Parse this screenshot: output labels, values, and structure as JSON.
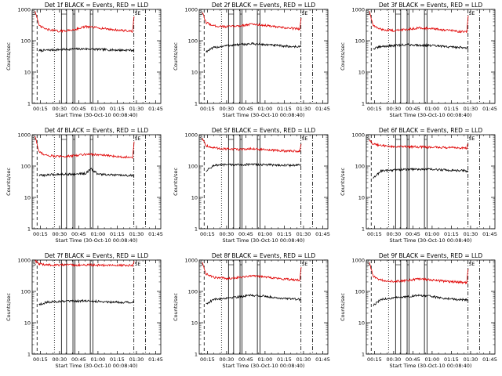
{
  "colors": {
    "events": "#000000",
    "lld": "#e00000",
    "axis": "#000000",
    "background": "#ffffff"
  },
  "chart_data": [
    {
      "type": "line",
      "title": "Det 1f BLACK = Events, RED = LLD",
      "xlabel": "Start Time (30-Oct-10 00:08:40)",
      "ylabel": "Counts/sec",
      "xlim": [
        "00:08:40",
        "01:49:00"
      ],
      "ylim": [
        1,
        1000
      ],
      "yscale": "log",
      "xticks": [
        "00:15",
        "00:30",
        "00:45",
        "01:00",
        "01:15",
        "01:30",
        "01:45"
      ],
      "yticks": [
        "1",
        "10",
        "100",
        "1000"
      ],
      "markers": {
        "solid_pairs": [
          [
            "00:31:30",
            "00:35:30"
          ],
          [
            "00:40:30",
            "00:42:00"
          ],
          [
            "00:54:00",
            "00:56:00"
          ]
        ],
        "dotted": [
          "00:26:00"
        ],
        "dash_dot": [
          "01:28:00",
          "01:37:00"
        ],
        "dashed": [
          "00:12:30"
        ]
      },
      "corner_labels": {
        "left": "S",
        "right": "SE"
      },
      "series": [
        {
          "name": "Events",
          "color": "#000000",
          "t": [
            "00:14:00",
            "00:20:00",
            "00:30:00",
            "00:40:00",
            "00:50:00",
            "01:00:00",
            "01:10:00",
            "01:20:00",
            "01:28:00"
          ],
          "values": [
            48,
            50,
            52,
            54,
            55,
            53,
            51,
            50,
            50
          ]
        },
        {
          "name": "LLD",
          "color": "#e00000",
          "t": [
            "00:11:00",
            "00:14:00",
            "00:20:00",
            "00:30:00",
            "00:40:00",
            "00:50:00",
            "01:00:00",
            "01:10:00",
            "01:20:00",
            "01:27:00",
            "01:28:30"
          ],
          "values": [
            900,
            300,
            230,
            200,
            220,
            280,
            260,
            230,
            210,
            200,
            800
          ]
        }
      ]
    },
    {
      "type": "line",
      "title": "Det 2f BLACK = Events, RED = LLD",
      "xlabel": "Start Time (30-Oct-10 00:08:40)",
      "ylabel": "Counts/sec",
      "xlim": [
        "00:08:40",
        "01:49:00"
      ],
      "ylim": [
        1,
        1000
      ],
      "yscale": "log",
      "xticks": [
        "00:15",
        "00:30",
        "00:45",
        "01:00",
        "01:15",
        "01:30",
        "01:45"
      ],
      "yticks": [
        "1",
        "10",
        "100",
        "1000"
      ],
      "markers": {
        "solid_pairs": [
          [
            "00:31:30",
            "00:35:30"
          ],
          [
            "00:40:30",
            "00:42:00"
          ],
          [
            "00:54:00",
            "00:56:00"
          ]
        ],
        "dotted": [
          "00:26:00"
        ],
        "dash_dot": [
          "01:28:00",
          "01:37:00"
        ],
        "dashed": [
          "00:12:30"
        ]
      },
      "corner_labels": {
        "left": "S",
        "right": "SE"
      },
      "series": [
        {
          "name": "Events",
          "color": "#000000",
          "t": [
            "00:14:00",
            "00:20:00",
            "00:30:00",
            "00:40:00",
            "00:50:00",
            "01:00:00",
            "01:10:00",
            "01:20:00",
            "01:28:00"
          ],
          "values": [
            45,
            60,
            70,
            75,
            80,
            75,
            70,
            65,
            65
          ]
        },
        {
          "name": "LLD",
          "color": "#e00000",
          "t": [
            "00:11:00",
            "00:14:00",
            "00:20:00",
            "00:30:00",
            "00:40:00",
            "00:50:00",
            "01:00:00",
            "01:10:00",
            "01:20:00",
            "01:27:00",
            "01:28:30"
          ],
          "values": [
            800,
            380,
            300,
            280,
            300,
            340,
            310,
            270,
            250,
            240,
            700
          ]
        }
      ]
    },
    {
      "type": "line",
      "title": "Det 3f BLACK = Events, RED = LLD",
      "xlabel": "Start Time (30-Oct-10 00:08:40)",
      "ylabel": "Counts/sec",
      "xlim": [
        "00:08:40",
        "01:49:00"
      ],
      "ylim": [
        1,
        1000
      ],
      "yscale": "log",
      "xticks": [
        "00:15",
        "00:30",
        "00:45",
        "01:00",
        "01:15",
        "01:30",
        "01:45"
      ],
      "yticks": [
        "1",
        "10",
        "100",
        "1000"
      ],
      "markers": {
        "solid_pairs": [
          [
            "00:31:30",
            "00:35:30"
          ],
          [
            "00:40:30",
            "00:42:00"
          ],
          [
            "00:54:00",
            "00:56:00"
          ]
        ],
        "dotted": [
          "00:26:00"
        ],
        "dash_dot": [
          "01:28:00",
          "01:37:00"
        ],
        "dashed": [
          "00:12:30"
        ]
      },
      "corner_labels": {
        "left": "S",
        "right": "SE"
      },
      "series": [
        {
          "name": "Events",
          "color": "#000000",
          "t": [
            "00:14:00",
            "00:20:00",
            "00:30:00",
            "00:40:00",
            "00:50:00",
            "01:00:00",
            "01:10:00",
            "01:20:00",
            "01:28:00"
          ],
          "values": [
            55,
            65,
            70,
            75,
            72,
            70,
            65,
            62,
            60
          ]
        },
        {
          "name": "LLD",
          "color": "#e00000",
          "t": [
            "00:11:00",
            "00:14:00",
            "00:20:00",
            "00:30:00",
            "00:40:00",
            "00:50:00",
            "01:00:00",
            "01:10:00",
            "01:20:00",
            "01:27:00",
            "01:28:30"
          ],
          "values": [
            900,
            300,
            230,
            210,
            230,
            260,
            240,
            220,
            200,
            190,
            800
          ]
        }
      ]
    },
    {
      "type": "line",
      "title": "Det 4f BLACK = Events, RED = LLD",
      "xlabel": "Start Time (30-Oct-10 00:08:40)",
      "ylabel": "Counts/sec",
      "xlim": [
        "00:08:40",
        "01:49:00"
      ],
      "ylim": [
        1,
        1000
      ],
      "yscale": "log",
      "xticks": [
        "00:15",
        "00:30",
        "00:45",
        "01:00",
        "01:15",
        "01:30",
        "01:45"
      ],
      "yticks": [
        "1",
        "10",
        "100",
        "1000"
      ],
      "markers": {
        "solid_pairs": [
          [
            "00:31:30",
            "00:35:30"
          ],
          [
            "00:40:30",
            "00:42:00"
          ],
          [
            "00:54:00",
            "00:56:00"
          ]
        ],
        "dotted": [
          "00:26:00"
        ],
        "dash_dot": [
          "01:28:00",
          "01:37:00"
        ],
        "dashed": [
          "00:12:30"
        ]
      },
      "corner_labels": {
        "left": "S",
        "right": "SE"
      },
      "series": [
        {
          "name": "Events",
          "color": "#000000",
          "t": [
            "00:14:00",
            "00:20:00",
            "00:30:00",
            "00:40:00",
            "00:50:00",
            "00:55:00",
            "01:00:00",
            "01:10:00",
            "01:20:00",
            "01:28:00"
          ],
          "values": [
            50,
            52,
            55,
            55,
            58,
            80,
            55,
            52,
            50,
            50
          ]
        },
        {
          "name": "LLD",
          "color": "#e00000",
          "t": [
            "00:11:00",
            "00:14:00",
            "00:20:00",
            "00:30:00",
            "00:40:00",
            "00:50:00",
            "01:00:00",
            "01:10:00",
            "01:20:00",
            "01:27:00",
            "01:28:30"
          ],
          "values": [
            900,
            280,
            220,
            200,
            210,
            240,
            230,
            210,
            195,
            190,
            800
          ]
        }
      ]
    },
    {
      "type": "line",
      "title": "Det 5f BLACK = Events, RED = LLD",
      "xlabel": "Start Time (30-Oct-10 00:08:40)",
      "ylabel": "Counts/sec",
      "xlim": [
        "00:08:40",
        "01:49:00"
      ],
      "ylim": [
        1,
        1000
      ],
      "yscale": "log",
      "xticks": [
        "00:15",
        "00:30",
        "00:45",
        "01:00",
        "01:15",
        "01:30",
        "01:45"
      ],
      "yticks": [
        "1",
        "10",
        "100",
        "1000"
      ],
      "markers": {
        "solid_pairs": [
          [
            "00:31:30",
            "00:35:30"
          ],
          [
            "00:40:30",
            "00:42:00"
          ],
          [
            "00:54:00",
            "00:56:00"
          ]
        ],
        "dotted": [
          "00:26:00"
        ],
        "dash_dot": [
          "01:28:00",
          "01:37:00"
        ],
        "dashed": [
          "00:12:30"
        ]
      },
      "corner_labels": {
        "left": "S",
        "right": "SE"
      },
      "series": [
        {
          "name": "Events",
          "color": "#000000",
          "t": [
            "00:14:00",
            "00:20:00",
            "00:30:00",
            "00:40:00",
            "00:50:00",
            "01:00:00",
            "01:10:00",
            "01:20:00",
            "01:28:00"
          ],
          "values": [
            70,
            105,
            110,
            110,
            112,
            110,
            108,
            105,
            110
          ]
        },
        {
          "name": "LLD",
          "color": "#e00000",
          "t": [
            "00:11:00",
            "00:14:00",
            "00:20:00",
            "00:30:00",
            "00:40:00",
            "00:50:00",
            "01:00:00",
            "01:10:00",
            "01:20:00",
            "01:27:00",
            "01:28:30"
          ],
          "values": [
            800,
            450,
            380,
            350,
            340,
            360,
            330,
            310,
            300,
            300,
            600
          ]
        }
      ]
    },
    {
      "type": "line",
      "title": "Det 6f BLACK = Events, RED = LLD",
      "xlabel": "Start Time (30-Oct-10 00:08:40)",
      "ylabel": "Counts/sec",
      "xlim": [
        "00:08:40",
        "01:49:00"
      ],
      "ylim": [
        1,
        1000
      ],
      "yscale": "log",
      "xticks": [
        "00:15",
        "00:30",
        "00:45",
        "01:00",
        "01:15",
        "01:30",
        "01:45"
      ],
      "yticks": [
        "1",
        "10",
        "100",
        "1000"
      ],
      "markers": {
        "solid_pairs": [
          [
            "00:31:30",
            "00:35:30"
          ],
          [
            "00:40:30",
            "00:42:00"
          ],
          [
            "00:54:00",
            "00:56:00"
          ]
        ],
        "dotted": [
          "00:26:00"
        ],
        "dash_dot": [
          "01:28:00",
          "01:37:00"
        ],
        "dashed": [
          "00:12:30"
        ]
      },
      "corner_labels": {
        "left": "S",
        "right": "SE"
      },
      "series": [
        {
          "name": "Events",
          "color": "#000000",
          "t": [
            "00:14:00",
            "00:20:00",
            "00:30:00",
            "00:40:00",
            "00:50:00",
            "01:00:00",
            "01:10:00",
            "01:20:00",
            "01:28:00"
          ],
          "values": [
            40,
            70,
            75,
            78,
            80,
            78,
            75,
            72,
            70
          ]
        },
        {
          "name": "LLD",
          "color": "#e00000",
          "t": [
            "00:11:00",
            "00:14:00",
            "00:20:00",
            "00:30:00",
            "00:40:00",
            "00:50:00",
            "01:00:00",
            "01:10:00",
            "01:20:00",
            "01:27:00",
            "01:28:30"
          ],
          "values": [
            700,
            500,
            450,
            420,
            410,
            410,
            400,
            390,
            380,
            370,
            600
          ]
        }
      ]
    },
    {
      "type": "line",
      "title": "Det 7f BLACK = Events, RED = LLD",
      "xlabel": "Start Time (30-Oct-10 00:08:40)",
      "ylabel": "Counts/sec",
      "xlim": [
        "00:08:40",
        "01:49:00"
      ],
      "ylim": [
        1,
        1000
      ],
      "yscale": "log",
      "xticks": [
        "00:15",
        "00:30",
        "00:45",
        "01:00",
        "01:15",
        "01:30",
        "01:45"
      ],
      "yticks": [
        "1",
        "10",
        "100",
        "1000"
      ],
      "markers": {
        "solid_pairs": [
          [
            "00:31:30",
            "00:35:30"
          ],
          [
            "00:40:30",
            "00:42:00"
          ],
          [
            "00:54:00",
            "00:56:00"
          ]
        ],
        "dotted": [
          "00:26:00"
        ],
        "dash_dot": [
          "01:28:00",
          "01:37:00"
        ],
        "dashed": [
          "00:12:30"
        ]
      },
      "corner_labels": {
        "left": "S",
        "right": "SE"
      },
      "series": [
        {
          "name": "Events",
          "color": "#000000",
          "t": [
            "00:14:00",
            "00:20:00",
            "00:30:00",
            "00:40:00",
            "00:50:00",
            "01:00:00",
            "01:10:00",
            "01:20:00",
            "01:28:00"
          ],
          "values": [
            38,
            45,
            48,
            48,
            50,
            48,
            46,
            45,
            45
          ]
        },
        {
          "name": "LLD",
          "color": "#e00000",
          "t": [
            "00:11:00",
            "00:14:00",
            "00:20:00",
            "00:30:00",
            "00:40:00",
            "00:50:00",
            "01:00:00",
            "01:10:00",
            "01:20:00",
            "01:27:00",
            "01:28:30"
          ],
          "values": [
            950,
            750,
            700,
            700,
            690,
            700,
            690,
            680,
            680,
            680,
            950
          ]
        }
      ]
    },
    {
      "type": "line",
      "title": "Det 8f BLACK = Events, RED = LLD",
      "xlabel": "Start Time (30-Oct-10 00:08:40)",
      "ylabel": "Counts/sec",
      "xlim": [
        "00:08:40",
        "01:49:00"
      ],
      "ylim": [
        1,
        1000
      ],
      "yscale": "log",
      "xticks": [
        "00:15",
        "00:30",
        "00:45",
        "01:00",
        "01:15",
        "01:30",
        "01:45"
      ],
      "yticks": [
        "1",
        "10",
        "100",
        "1000"
      ],
      "markers": {
        "solid_pairs": [
          [
            "00:31:30",
            "00:35:30"
          ],
          [
            "00:40:30",
            "00:42:00"
          ],
          [
            "00:54:00",
            "00:56:00"
          ]
        ],
        "dotted": [
          "00:26:00"
        ],
        "dash_dot": [
          "01:28:00",
          "01:37:00"
        ],
        "dashed": [
          "00:12:30"
        ]
      },
      "corner_labels": {
        "left": "S",
        "right": "SE"
      },
      "series": [
        {
          "name": "Events",
          "color": "#000000",
          "t": [
            "00:14:00",
            "00:20:00",
            "00:30:00",
            "00:40:00",
            "00:50:00",
            "01:00:00",
            "01:10:00",
            "01:20:00",
            "01:28:00"
          ],
          "values": [
            40,
            55,
            62,
            68,
            75,
            70,
            62,
            58,
            55
          ]
        },
        {
          "name": "LLD",
          "color": "#e00000",
          "t": [
            "00:11:00",
            "00:14:00",
            "00:20:00",
            "00:30:00",
            "00:40:00",
            "00:50:00",
            "01:00:00",
            "01:10:00",
            "01:20:00",
            "01:27:00",
            "01:28:30"
          ],
          "values": [
            850,
            360,
            280,
            260,
            280,
            320,
            290,
            260,
            240,
            230,
            750
          ]
        }
      ]
    },
    {
      "type": "line",
      "title": "Det 9f BLACK = Events, RED = LLD",
      "xlabel": "Start Time (30-Oct-10 00:08:40)",
      "ylabel": "Counts/sec",
      "xlim": [
        "00:08:40",
        "01:49:00"
      ],
      "ylim": [
        1,
        1000
      ],
      "yscale": "log",
      "xticks": [
        "00:15",
        "00:30",
        "00:45",
        "01:00",
        "01:15",
        "01:30",
        "01:45"
      ],
      "yticks": [
        "1",
        "10",
        "100",
        "1000"
      ],
      "markers": {
        "solid_pairs": [
          [
            "00:31:30",
            "00:35:30"
          ],
          [
            "00:40:30",
            "00:42:00"
          ],
          [
            "00:54:00",
            "00:56:00"
          ]
        ],
        "dotted": [
          "00:26:00"
        ],
        "dash_dot": [
          "01:28:00",
          "01:37:00"
        ],
        "dashed": [
          "00:12:30"
        ]
      },
      "corner_labels": {
        "left": "S",
        "right": "SE"
      },
      "series": [
        {
          "name": "Events",
          "color": "#000000",
          "t": [
            "00:14:00",
            "00:20:00",
            "00:30:00",
            "00:40:00",
            "00:50:00",
            "01:00:00",
            "01:10:00",
            "01:20:00",
            "01:28:00"
          ],
          "values": [
            35,
            55,
            62,
            68,
            75,
            68,
            60,
            55,
            55
          ]
        },
        {
          "name": "LLD",
          "color": "#e00000",
          "t": [
            "00:11:00",
            "00:14:00",
            "00:20:00",
            "00:30:00",
            "00:40:00",
            "00:50:00",
            "01:00:00",
            "01:10:00",
            "01:20:00",
            "01:27:00",
            "01:28:30"
          ],
          "values": [
            850,
            300,
            230,
            210,
            220,
            250,
            230,
            210,
            200,
            190,
            700
          ]
        }
      ]
    }
  ]
}
